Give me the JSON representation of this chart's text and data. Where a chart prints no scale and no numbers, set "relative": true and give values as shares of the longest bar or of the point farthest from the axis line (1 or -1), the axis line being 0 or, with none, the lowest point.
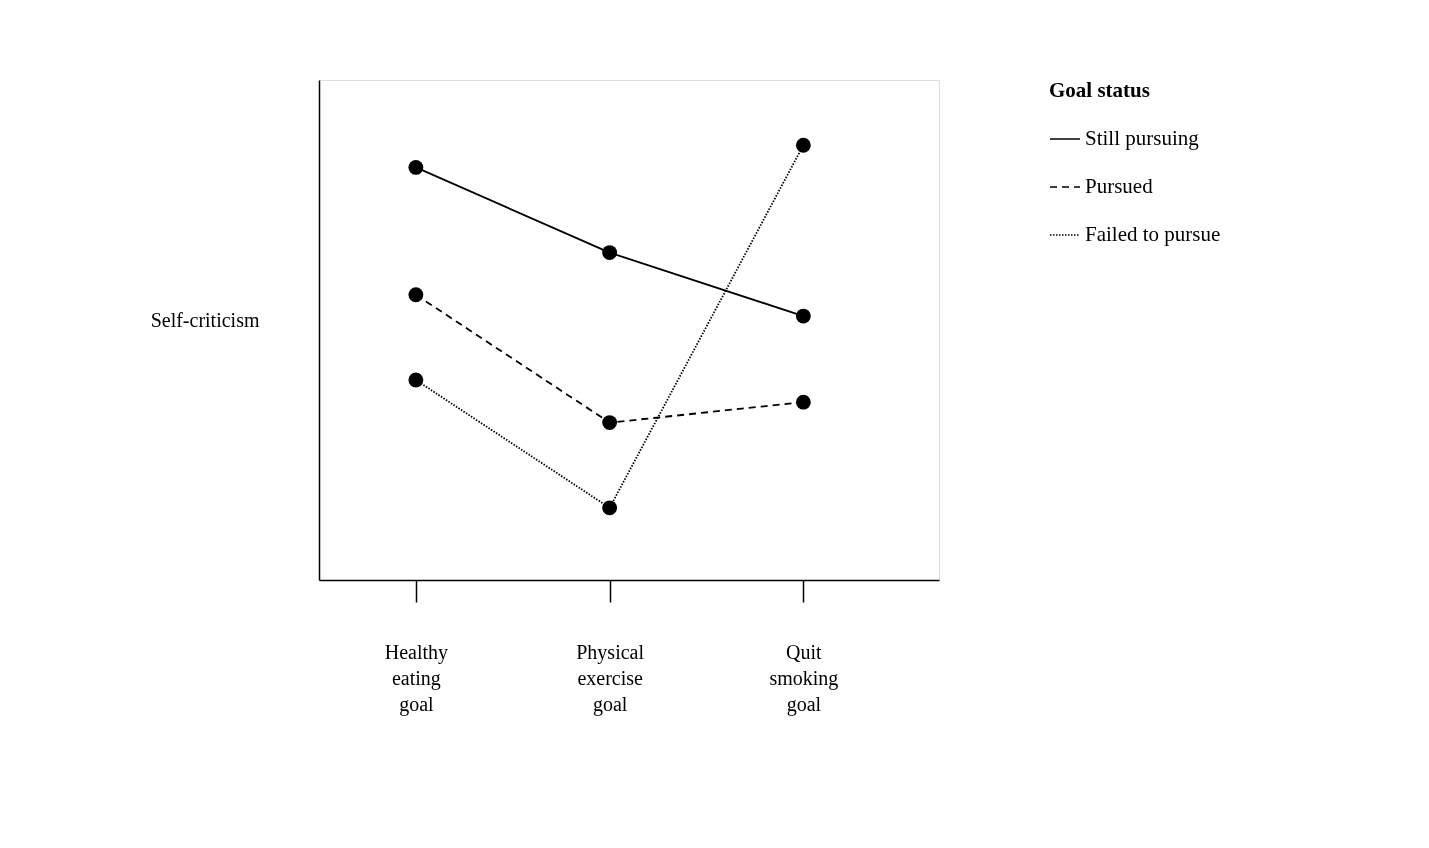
{
  "chart_data": {
    "type": "line",
    "relative": true,
    "ylabel": "Self-criticism",
    "legend_title": "Goal status",
    "legend": "right",
    "marker": "circle",
    "grid": false,
    "categories": [
      "Healthy eating goal",
      "Physical exercise goal",
      "Quit smoking goal"
    ],
    "series": [
      {
        "name": "Still pursuing",
        "color": "#000000",
        "line_style": "solid",
        "values": [
          0.949,
          0.753,
          0.607
        ]
      },
      {
        "name": "Pursued",
        "color": "#000000",
        "line_style": "dashed",
        "values": [
          0.656,
          0.362,
          0.409
        ]
      },
      {
        "name": "Failed to pursue",
        "color": "#000000",
        "line_style": "dotted",
        "values": [
          0.46,
          0.166,
          1.0
        ]
      }
    ]
  }
}
